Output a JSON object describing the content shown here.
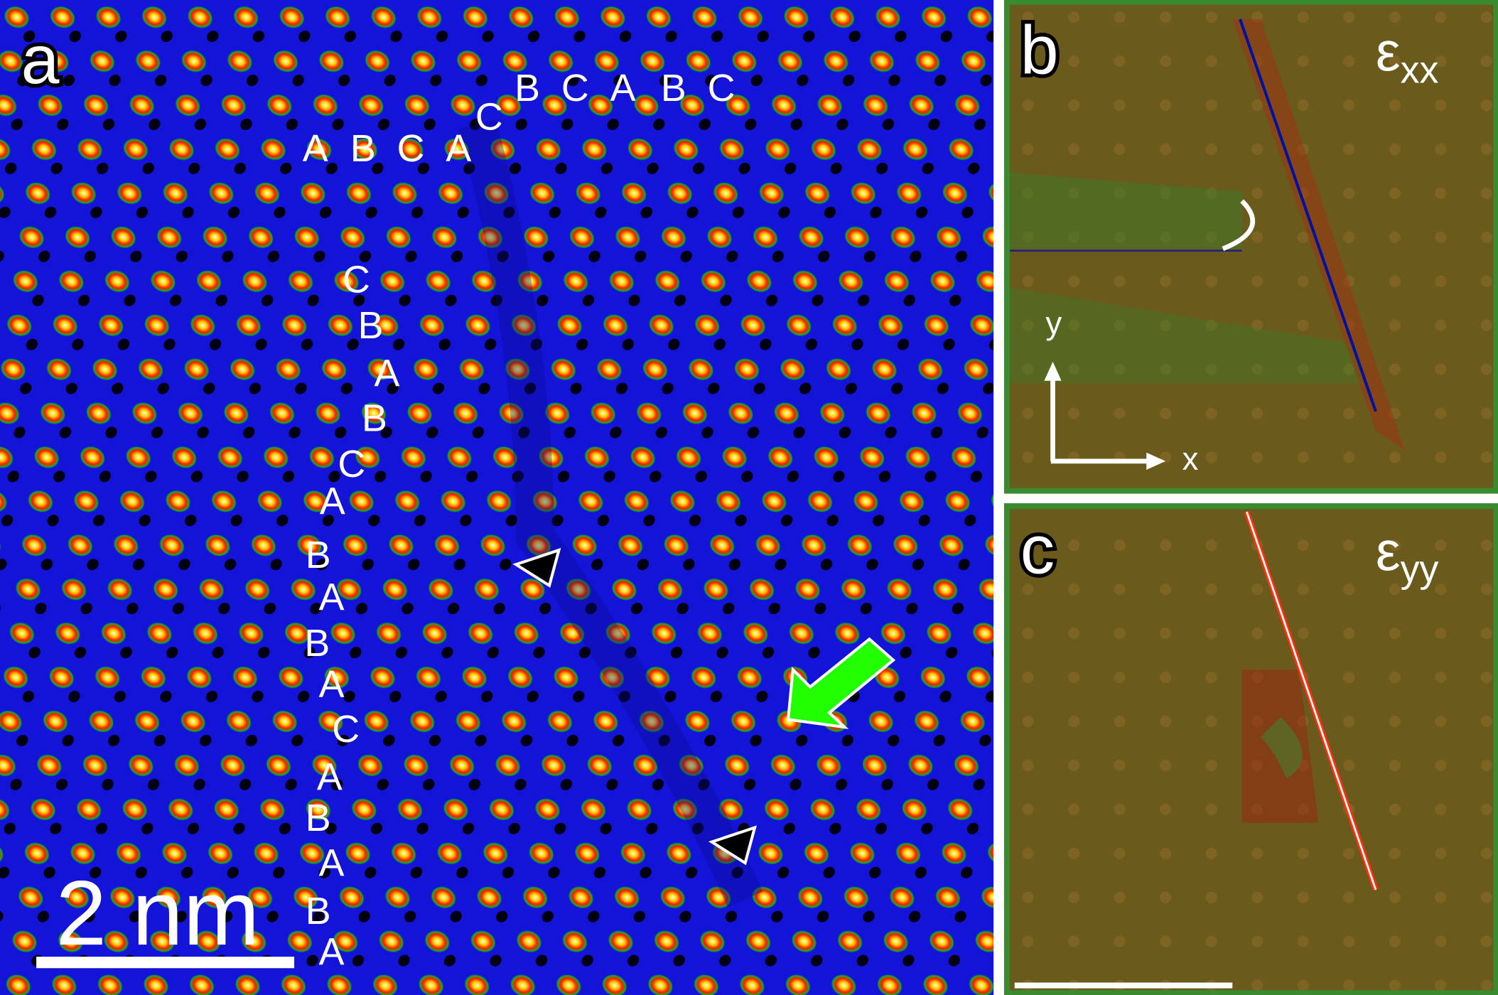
{
  "panel_a": {
    "label": "a",
    "stacking": [
      "A",
      "B",
      "C",
      "A",
      "C",
      "B",
      "C",
      "A",
      "B",
      "C",
      "C",
      "B",
      "A",
      "B",
      "C",
      "A",
      "B",
      "A",
      "B",
      "A",
      "C",
      "A",
      "B",
      "A",
      "B",
      "A"
    ],
    "scale_bar": "2 nm"
  },
  "panel_b": {
    "label": "b",
    "symbol": "ε",
    "subscript": "xx",
    "axis_y": "y",
    "axis_x": "x"
  },
  "panel_c": {
    "label": "c",
    "symbol": "ε",
    "subscript": "yy"
  }
}
